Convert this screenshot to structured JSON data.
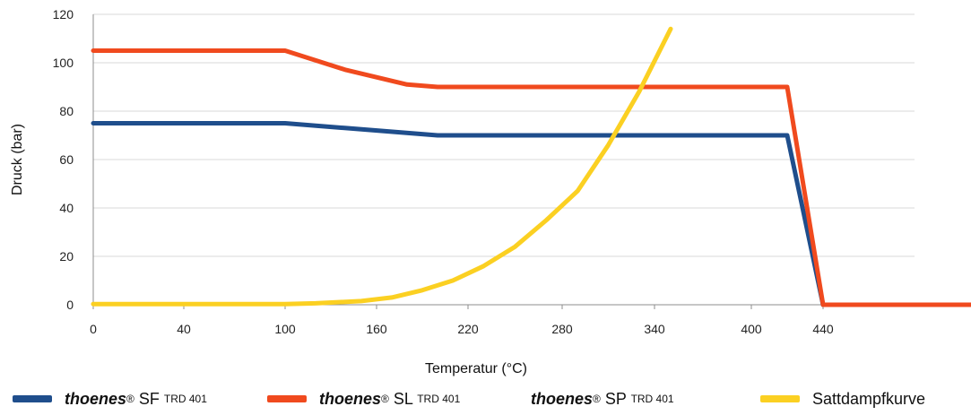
{
  "colors": {
    "series_sf": "#1f4e8c",
    "series_sl": "#f04a1e",
    "series_sat": "#fbd022",
    "grid": "#d9d9d9",
    "axis": "#8c8c8c"
  },
  "legend": {
    "sf": {
      "brand": "thoenes",
      "reg": "®",
      "name": " SF ",
      "sup": "TRD 401"
    },
    "sl": {
      "brand": "thoenes",
      "reg": "®",
      "name": " SL ",
      "sup": "TRD 401"
    },
    "sp": {
      "brand": "thoenes",
      "reg": "®",
      "name": " SP ",
      "sup": "TRD 401"
    },
    "sat": {
      "name": "Sattdampfkurve"
    }
  },
  "chart_data": {
    "type": "line",
    "xlabel": "Temperatur (°C)",
    "ylabel": "Druck (bar)",
    "xticks": [
      0,
      40,
      100,
      160,
      220,
      280,
      340,
      400,
      440
    ],
    "yticks": [
      0,
      20,
      40,
      60,
      80,
      100,
      120
    ],
    "ylim": [
      0,
      120
    ],
    "grid": "horizontal",
    "legend_position": "bottom",
    "series": [
      {
        "name": "thoenes® SF TRD 401",
        "color_key": "series_sf",
        "points": [
          [
            0,
            75
          ],
          [
            100,
            75
          ],
          [
            140,
            73
          ],
          [
            200,
            70
          ],
          [
            420,
            70
          ],
          [
            440,
            0
          ],
          [
            500,
            0
          ]
        ]
      },
      {
        "name": "thoenes® SL TRD 401",
        "color_key": "series_sl",
        "points": [
          [
            0,
            105
          ],
          [
            100,
            105
          ],
          [
            140,
            97
          ],
          [
            180,
            91
          ],
          [
            200,
            90
          ],
          [
            420,
            90
          ],
          [
            440,
            0
          ],
          [
            500,
            0
          ]
        ]
      },
      {
        "name": "Sattdampfkurve",
        "color_key": "series_sat",
        "points": [
          [
            0,
            0.3
          ],
          [
            100,
            0.3
          ],
          [
            120,
            0.6
          ],
          [
            150,
            1.5
          ],
          [
            170,
            3
          ],
          [
            190,
            6
          ],
          [
            210,
            10
          ],
          [
            230,
            16
          ],
          [
            250,
            24
          ],
          [
            270,
            35
          ],
          [
            290,
            47
          ],
          [
            310,
            66
          ],
          [
            330,
            88
          ],
          [
            350,
            114
          ]
        ]
      }
    ]
  }
}
